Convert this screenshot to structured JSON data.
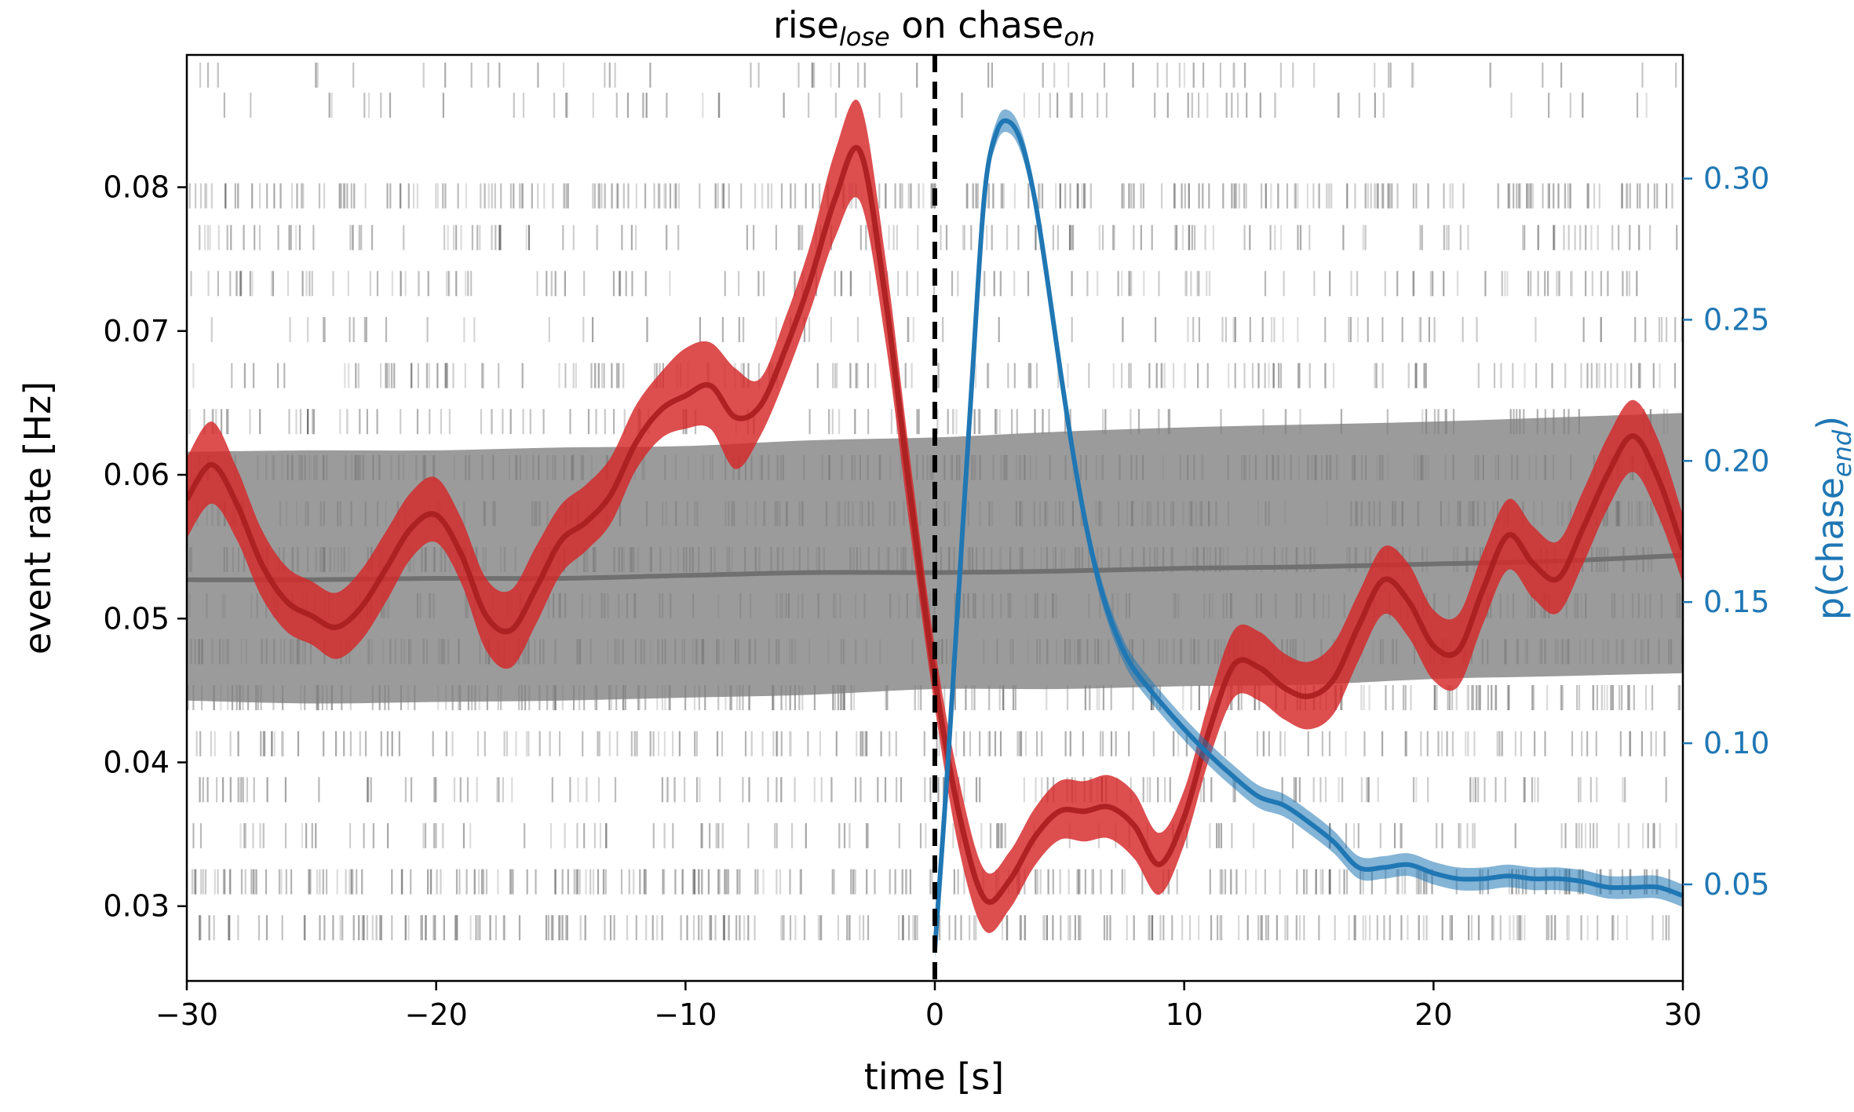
{
  "chart_data": {
    "type": "line",
    "title": {
      "base": "rise",
      "sub": "lose",
      "mid": " on chase",
      "sub2": "on"
    },
    "xlabel": "time [s]",
    "ylabel": "event rate [Hz]",
    "ylabel_right": {
      "base": "p(chase",
      "sub": "end",
      "end": ")"
    },
    "xlim": [
      -30,
      30
    ],
    "ylim": [
      0.0248,
      0.0892
    ],
    "ylim_right": [
      0.0158,
      0.3438
    ],
    "x_ticks": [
      -30,
      -20,
      -10,
      0,
      10,
      20,
      30
    ],
    "x_tick_labels": [
      "−30",
      "−20",
      "−10",
      "0",
      "10",
      "20",
      "30"
    ],
    "y_ticks": [
      0.03,
      0.04,
      0.05,
      0.06,
      0.07,
      0.08
    ],
    "y_tick_labels": [
      "0.03",
      "0.04",
      "0.05",
      "0.06",
      "0.07",
      "0.08"
    ],
    "y_ticks_right": [
      0.05,
      0.1,
      0.15,
      0.2,
      0.25,
      0.3
    ],
    "y_tick_labels_right": [
      "0.05",
      "0.10",
      "0.15",
      "0.20",
      "0.25",
      "0.30"
    ],
    "grid": false,
    "vline": {
      "x": 0,
      "style": "dashed",
      "color": "#000000"
    },
    "colors": {
      "event_rate": "#d62728",
      "event_band": "#d62728",
      "baseline": "#707070",
      "baseline_band": "#7f7f7f",
      "p_chase": "#1f77b4",
      "raster": "#555555",
      "right_axis": "#1f77b4"
    },
    "series": [
      {
        "role": "event-rate",
        "axis": "left",
        "x": [
          -30,
          -29,
          -28,
          -27,
          -26,
          -25,
          -24,
          -23,
          -22,
          -21,
          -20,
          -19,
          -18,
          -17,
          -16,
          -15,
          -14,
          -13,
          -12,
          -11,
          -10,
          -9,
          -8,
          -7,
          -6,
          -5,
          -4,
          -3,
          -2,
          -1,
          0,
          1,
          2,
          3,
          4,
          5,
          6,
          7,
          8,
          9,
          10,
          11,
          12,
          13,
          14,
          15,
          16,
          17,
          18,
          19,
          20,
          21,
          22,
          23,
          24,
          25,
          26,
          27,
          28,
          29,
          30
        ],
        "y": [
          0.0583,
          0.0607,
          0.058,
          0.0538,
          0.0512,
          0.0502,
          0.0494,
          0.0508,
          0.0535,
          0.0563,
          0.0572,
          0.0545,
          0.0502,
          0.0492,
          0.0521,
          0.0554,
          0.0567,
          0.0586,
          0.0622,
          0.0645,
          0.0655,
          0.0662,
          0.064,
          0.0648,
          0.0687,
          0.0735,
          0.0792,
          0.0825,
          0.0725,
          0.0588,
          0.0458,
          0.0362,
          0.0305,
          0.0318,
          0.0348,
          0.0366,
          0.0366,
          0.0369,
          0.0356,
          0.0329,
          0.0362,
          0.0422,
          0.0468,
          0.0466,
          0.0452,
          0.0446,
          0.0458,
          0.0495,
          0.0527,
          0.0512,
          0.0481,
          0.0478,
          0.0521,
          0.0558,
          0.0538,
          0.0528,
          0.0563,
          0.0601,
          0.0627,
          0.0598,
          0.0548
        ],
        "lower": [
          0.0556,
          0.058,
          0.0555,
          0.0515,
          0.0491,
          0.0482,
          0.0472,
          0.0485,
          0.0512,
          0.0542,
          0.0553,
          0.0525,
          0.0478,
          0.0466,
          0.0496,
          0.0531,
          0.0547,
          0.0566,
          0.0603,
          0.0625,
          0.0632,
          0.0632,
          0.0604,
          0.0627,
          0.0667,
          0.0714,
          0.0765,
          0.079,
          0.0695,
          0.0563,
          0.0438,
          0.0337,
          0.0283,
          0.0298,
          0.0328,
          0.0346,
          0.0345,
          0.0347,
          0.0333,
          0.0308,
          0.0343,
          0.0402,
          0.0445,
          0.0443,
          0.043,
          0.0423,
          0.0434,
          0.0471,
          0.0503,
          0.0487,
          0.0457,
          0.0453,
          0.0497,
          0.0534,
          0.0514,
          0.0504,
          0.0538,
          0.0577,
          0.0602,
          0.0572,
          0.0525
        ],
        "upper": [
          0.0612,
          0.0637,
          0.0605,
          0.0562,
          0.0536,
          0.0526,
          0.0518,
          0.0534,
          0.0561,
          0.0588,
          0.0598,
          0.057,
          0.0528,
          0.052,
          0.055,
          0.0579,
          0.0593,
          0.0612,
          0.0648,
          0.0671,
          0.0688,
          0.0692,
          0.0674,
          0.0667,
          0.0709,
          0.076,
          0.0825,
          0.0858,
          0.0753,
          0.0612,
          0.048,
          0.0385,
          0.0325,
          0.0338,
          0.0368,
          0.0387,
          0.0387,
          0.0391,
          0.0379,
          0.0351,
          0.0381,
          0.0443,
          0.0492,
          0.0491,
          0.0476,
          0.047,
          0.0483,
          0.0518,
          0.055,
          0.0538,
          0.0506,
          0.0503,
          0.0547,
          0.0583,
          0.0564,
          0.0554,
          0.0589,
          0.0627,
          0.0652,
          0.0625,
          0.0572
        ]
      },
      {
        "role": "baseline",
        "axis": "left",
        "x": [
          -30,
          -25,
          -20,
          -15,
          -10,
          -5,
          0,
          5,
          10,
          15,
          20,
          25,
          30
        ],
        "y": [
          0.0527,
          0.0527,
          0.0528,
          0.0528,
          0.053,
          0.0532,
          0.0532,
          0.0533,
          0.0535,
          0.0536,
          0.0538,
          0.054,
          0.0544
        ],
        "lower": [
          0.0443,
          0.0441,
          0.0442,
          0.0443,
          0.0445,
          0.0447,
          0.0451,
          0.0451,
          0.0453,
          0.0454,
          0.0458,
          0.046,
          0.0462
        ],
        "upper": [
          0.0616,
          0.0617,
          0.0617,
          0.0619,
          0.062,
          0.0624,
          0.0626,
          0.063,
          0.0633,
          0.0635,
          0.0637,
          0.064,
          0.0643
        ]
      },
      {
        "role": "p-chase-end",
        "axis": "right",
        "x": [
          0,
          0.5,
          1,
          1.5,
          2,
          2.5,
          3,
          3.5,
          4,
          4.5,
          5,
          5.5,
          6,
          6.5,
          7,
          7.5,
          8,
          9,
          10,
          11,
          12,
          13,
          14,
          15,
          16,
          17,
          18,
          19,
          20,
          21,
          22,
          23,
          24,
          25,
          26,
          27,
          28,
          29,
          30
        ],
        "y": [
          0.027,
          0.09,
          0.16,
          0.23,
          0.295,
          0.317,
          0.32,
          0.312,
          0.293,
          0.265,
          0.234,
          0.205,
          0.18,
          0.16,
          0.145,
          0.134,
          0.126,
          0.115,
          0.105,
          0.096,
          0.088,
          0.081,
          0.078,
          0.072,
          0.065,
          0.056,
          0.056,
          0.057,
          0.054,
          0.052,
          0.052,
          0.053,
          0.052,
          0.052,
          0.051,
          0.049,
          0.049,
          0.049,
          0.046
        ],
        "band_half_width": 0.004
      }
    ],
    "raster_rows_y": [
      0.0878,
      0.0857,
      0.0794,
      0.0765,
      0.0733,
      0.0701,
      0.0669,
      0.0637,
      0.0605,
      0.0573,
      0.0541,
      0.0509,
      0.0477,
      0.0445,
      0.0413,
      0.0381,
      0.0349,
      0.0317,
      0.0285
    ],
    "raster_rows_density": [
      0.08,
      0.1,
      1.0,
      0.45,
      0.4,
      0.15,
      0.5,
      0.35,
      0.85,
      0.8,
      0.95,
      0.6,
      0.95,
      0.9,
      0.5,
      0.45,
      0.35,
      0.95,
      0.85
    ]
  }
}
